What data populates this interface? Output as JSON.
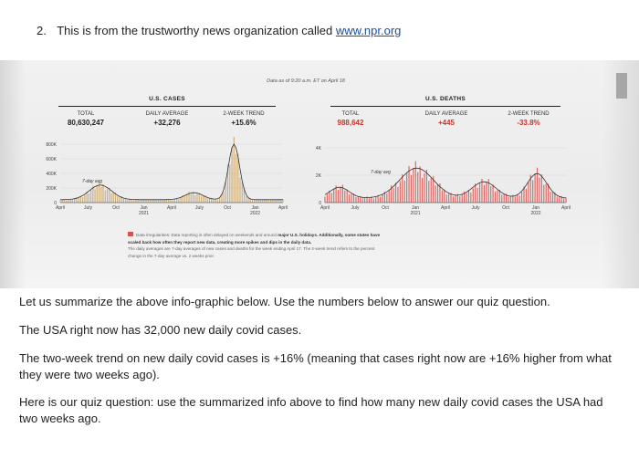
{
  "question": {
    "number": "2.",
    "text": "This is from the trustworthy news organization called ",
    "link": "www.npr.org"
  },
  "infographic": {
    "data_as_of": "Data as of 9:20 a.m. ET on April 18",
    "cases": {
      "title": "U.S. CASES",
      "total_label": "TOTAL",
      "total_value": "80,630,247",
      "daily_label": "DAILY AVERAGE",
      "daily_value": "+32,276",
      "trend_label": "2-WEEK TREND",
      "trend_value": "+15.6%",
      "y_ticks": [
        "800K",
        "600K",
        "400K",
        "200K",
        "0"
      ],
      "x_ticks": [
        "April",
        "July",
        "Oct",
        "Jan",
        "April",
        "July",
        "Oct",
        "Jan",
        "April"
      ],
      "year_ticks": [
        "2021",
        "2022"
      ],
      "annotation": "7-day avg"
    },
    "deaths": {
      "title": "U.S. DEATHS",
      "total_label": "TOTAL",
      "total_value": "988,642",
      "daily_label": "DAILY AVERAGE",
      "daily_value": "+445",
      "trend_label": "2-WEEK TREND",
      "trend_value": "-33.8%",
      "y_ticks": [
        "4K",
        "2K",
        "0"
      ],
      "x_ticks": [
        "April",
        "July",
        "Oct",
        "Jan",
        "April",
        "July",
        "Oct",
        "Jan",
        "April"
      ],
      "year_ticks": [
        "2021",
        "2022"
      ],
      "annotation": "7-day avg"
    },
    "note_line1_a": "Data irregularities: Data reporting is often delayed on weekends and around ",
    "note_line1_b": "major U.S. holidays. Additionally, some states have",
    "note_line2": "scaled back how often they report new data, creating more spikes and dips in the daily data.",
    "note_line3": "The daily averages are 7-day averages of new cases and deaths for the week ending April 17. The 2-week trend refers to the percent",
    "note_line4": "change in the 7-day average vs. 2 weeks prior.",
    "colors": {
      "cases_bar": "#c9a56b",
      "deaths_bar": "#d9534f",
      "line": "#333333"
    }
  },
  "body": {
    "p1": "Let us summarize the above info-graphic below. Use the numbers below to answer our quiz question.",
    "p2": "The USA right now has 32,000 new daily covid cases.",
    "p3": "The two-week trend on new daily covid cases is +16% (meaning that cases right now are +16% higher from what they were two weeks ago).",
    "p4": "Here is our quiz question: use the summarized info above to find how many new daily covid cases the USA had two weeks ago."
  }
}
